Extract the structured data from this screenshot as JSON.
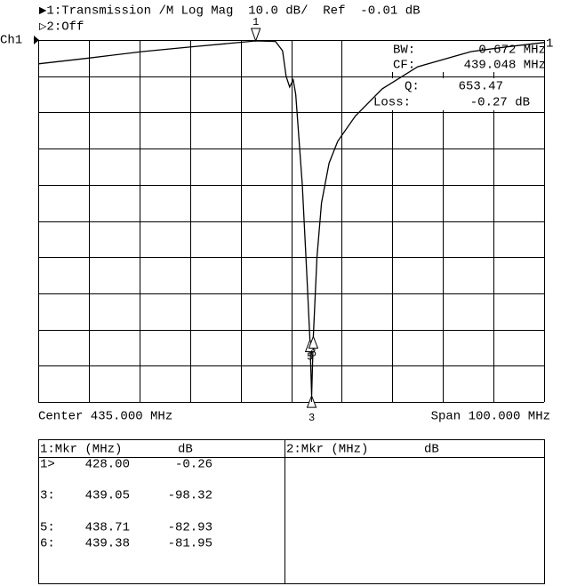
{
  "chart_data": {
    "type": "line",
    "title": "▶1:Transmission /M Log Mag  10.0 dB/  Ref  -0.01 dB",
    "subtitle": "▷2:Off",
    "channel_label": "Ch1",
    "ref_marker_label": "1",
    "center_label": "Center 435.000 MHz",
    "span_label": "Span 100.000 MHz",
    "info": [
      {
        "key": "BW:",
        "value": "0.672 MHz"
      },
      {
        "key": "CF:",
        "value": "439.048 MHz"
      },
      {
        "key": "Q:",
        "value": "653.47"
      },
      {
        "key": "Loss:",
        "value": "-0.27 dB"
      }
    ],
    "xlim": [
      385,
      485
    ],
    "ylim": [
      -100.01,
      -0.01
    ],
    "xticks": [
      385,
      395,
      405,
      415,
      425,
      435,
      445,
      455,
      465,
      475,
      485
    ],
    "yticks": [
      -0.01,
      -10.01,
      -20.01,
      -30.01,
      -40.01,
      -50.01,
      -60.01,
      -70.01,
      -80.01,
      -90.01,
      -100.01
    ],
    "grid": true,
    "series": [
      {
        "color": "#000000",
        "x": [
          385,
          395,
          405.6,
          416.1,
          428,
          431.9,
          433.3,
          434,
          434.7,
          435.4,
          435.9,
          437.2,
          438.1,
          438.71,
          439.05,
          439.38,
          440.1,
          441,
          442.5,
          444.2,
          447.7,
          453,
          460,
          470.6,
          477.6,
          485
        ],
        "values": [
          -6.6,
          -5,
          -3.2,
          -1.8,
          -0.26,
          -0.4,
          -3,
          -10,
          -13,
          -11,
          -15,
          -40,
          -65,
          -82.93,
          -98.32,
          -81.95,
          -60,
          -45,
          -34,
          -28,
          -21,
          -13.5,
          -7.4,
          -3.2,
          -1.9,
          -0.7
        ]
      }
    ],
    "markers": [
      {
        "label": "1",
        "x": 428,
        "y": -0.26
      },
      {
        "label": "3",
        "x": 439.05,
        "y": -98.32
      },
      {
        "label": "5",
        "x": 438.71,
        "y": -82.93
      },
      {
        "label": "6",
        "x": 439.38,
        "y": -81.95
      }
    ]
  },
  "marker_table": {
    "panels": [
      {
        "header": [
          "1:Mkr (MHz)",
          "dB"
        ],
        "rows": [
          [
            "1>",
            "428.00",
            "-0.26"
          ],
          [
            "3:",
            "439.05",
            "-98.32"
          ],
          [
            "5:",
            "438.71",
            "-82.93"
          ],
          [
            "6:",
            "439.38",
            "-81.95"
          ]
        ]
      },
      {
        "header": [
          "2:Mkr (MHz)",
          "dB"
        ],
        "rows": []
      }
    ]
  }
}
